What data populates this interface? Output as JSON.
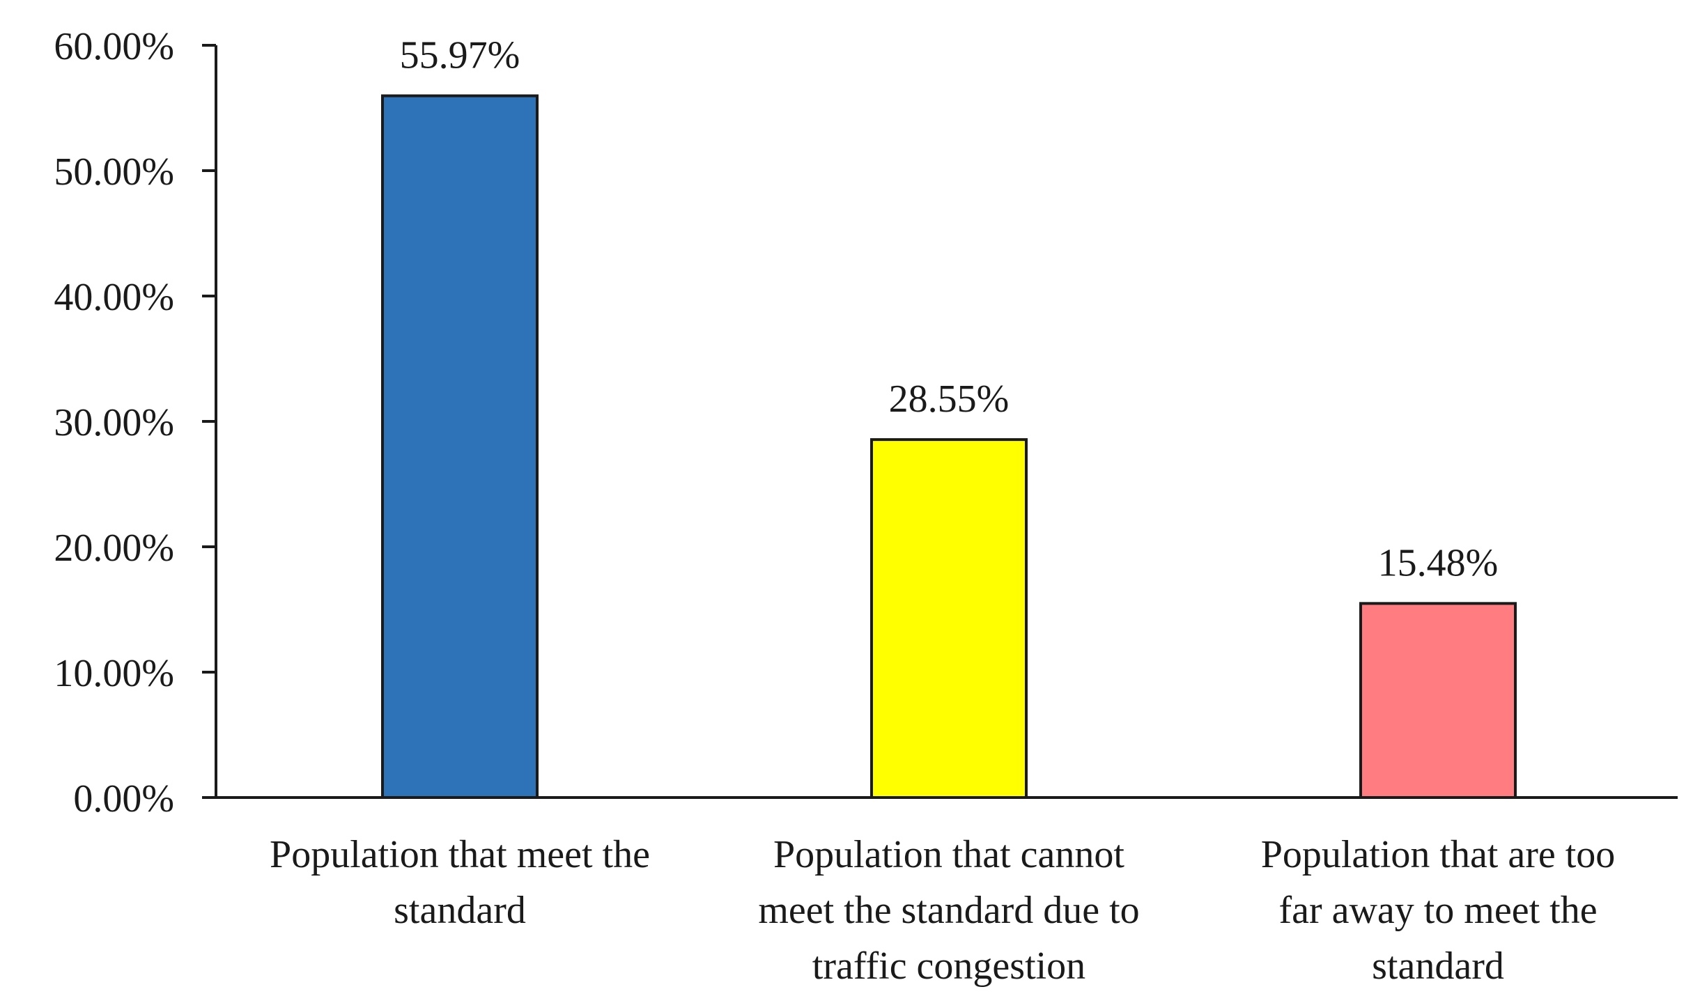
{
  "chart_data": {
    "type": "bar",
    "title": "",
    "xlabel": "",
    "ylabel": "",
    "ylim": [
      0,
      60
    ],
    "yticks": [
      0,
      10,
      20,
      30,
      40,
      50,
      60
    ],
    "ytick_labels": [
      "0.00%",
      "10.00%",
      "20.00%",
      "30.00%",
      "40.00%",
      "50.00%",
      "60.00%"
    ],
    "categories": [
      [
        "Population that meet the",
        "standard"
      ],
      [
        "Population that cannot",
        "meet the standard due to",
        "traffic congestion"
      ],
      [
        "Population that are too",
        "far away to meet the",
        "standard"
      ]
    ],
    "values": [
      55.97,
      28.55,
      15.48
    ],
    "value_labels": [
      "55.97%",
      "28.55%",
      "15.48%"
    ],
    "colors": [
      "#2e72b8",
      "#ffff00",
      "#ff7c80"
    ],
    "grid": false,
    "legend": "none"
  }
}
